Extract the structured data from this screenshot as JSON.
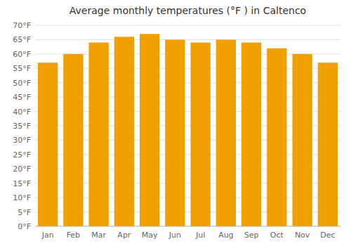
{
  "chart_data": {
    "type": "bar",
    "title": "Average monthly temperatures (°F ) in Caltenco",
    "categories": [
      "Jan",
      "Feb",
      "Mar",
      "Apr",
      "May",
      "Jun",
      "Jul",
      "Aug",
      "Sep",
      "Oct",
      "Nov",
      "Dec"
    ],
    "values": [
      57,
      60,
      64,
      66,
      67,
      65,
      64,
      65,
      64,
      62,
      60,
      57
    ],
    "color": "#F0A000",
    "ylim": [
      0,
      70
    ],
    "yticks": [
      {
        "value": 0,
        "label": "0°F"
      },
      {
        "value": 5,
        "label": "5°F"
      },
      {
        "value": 10,
        "label": "10°F"
      },
      {
        "value": 15,
        "label": "15°F"
      },
      {
        "value": 20,
        "label": "20°F"
      },
      {
        "value": 25,
        "label": "25°F"
      },
      {
        "value": 30,
        "label": "30°F"
      },
      {
        "value": 35,
        "label": "35°F"
      },
      {
        "value": 40,
        "label": "40°F"
      },
      {
        "value": 45,
        "label": "45°F"
      },
      {
        "value": 50,
        "label": "50°F"
      },
      {
        "value": 55,
        "label": "55°F"
      },
      {
        "value": 60,
        "label": "60°F"
      },
      {
        "value": 65,
        "label": "65°F"
      },
      {
        "value": 70,
        "label": "70°F"
      }
    ],
    "grid": true
  }
}
